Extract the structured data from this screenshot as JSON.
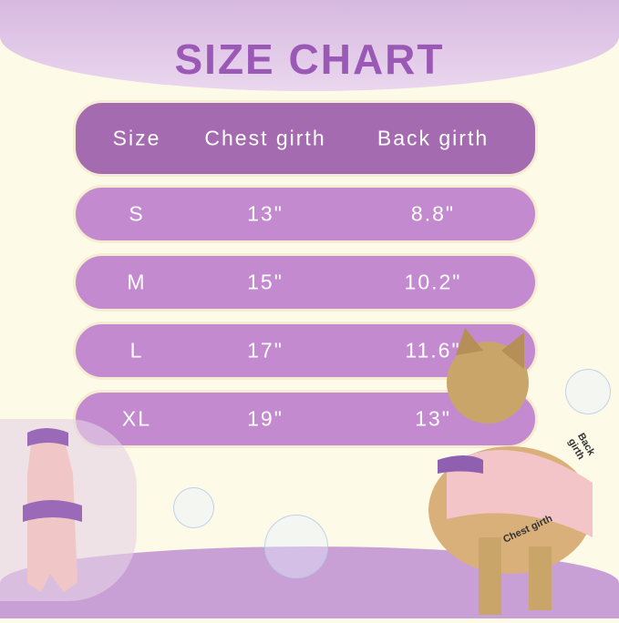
{
  "title": "SIZE CHART",
  "table": {
    "headers": [
      "Size",
      "Chest girth",
      "Back girth"
    ],
    "rows": [
      [
        "S",
        "13\"",
        "8.8\""
      ],
      [
        "M",
        "15\"",
        "10.2\""
      ],
      [
        "L",
        "17\"",
        "11.6\""
      ],
      [
        "XL",
        "19\"",
        "13\""
      ]
    ]
  },
  "photo_labels": {
    "back": "Back girth",
    "chest": "Chest girth"
  },
  "colors": {
    "header_row": "#a56bb0",
    "data_row": "#c48ad0",
    "title": "#9b59b6",
    "background": "#fdfbe8"
  }
}
